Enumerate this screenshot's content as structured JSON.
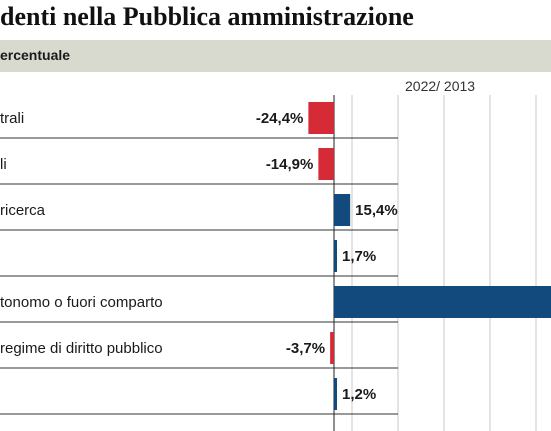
{
  "header": {
    "title": "denti nella Pubblica amministrazione",
    "subtitle": "ercentuale",
    "period": "2022/ 2013"
  },
  "colors": {
    "negative": "#d42b36",
    "positive": "#124a7e",
    "subtitle_bg": "#d9dacf",
    "grid": "#c8c8c8",
    "separator": "#333333"
  },
  "chart_data": {
    "type": "bar",
    "orientation": "horizontal",
    "categories": [
      "trali",
      "li",
      "ricerca",
      "",
      "tonomo o fuori comparto",
      "regime di diritto pubblico",
      ""
    ],
    "values": [
      -24.4,
      -14.9,
      15.4,
      1.7,
      null,
      -3.7,
      1.2
    ],
    "labels": [
      "-24,4%",
      "-14,9%",
      "15,4%",
      "1,7%",
      "",
      "-3,7%",
      "1,2%"
    ],
    "grid": true,
    "xlabel": "",
    "ylabel": ""
  }
}
